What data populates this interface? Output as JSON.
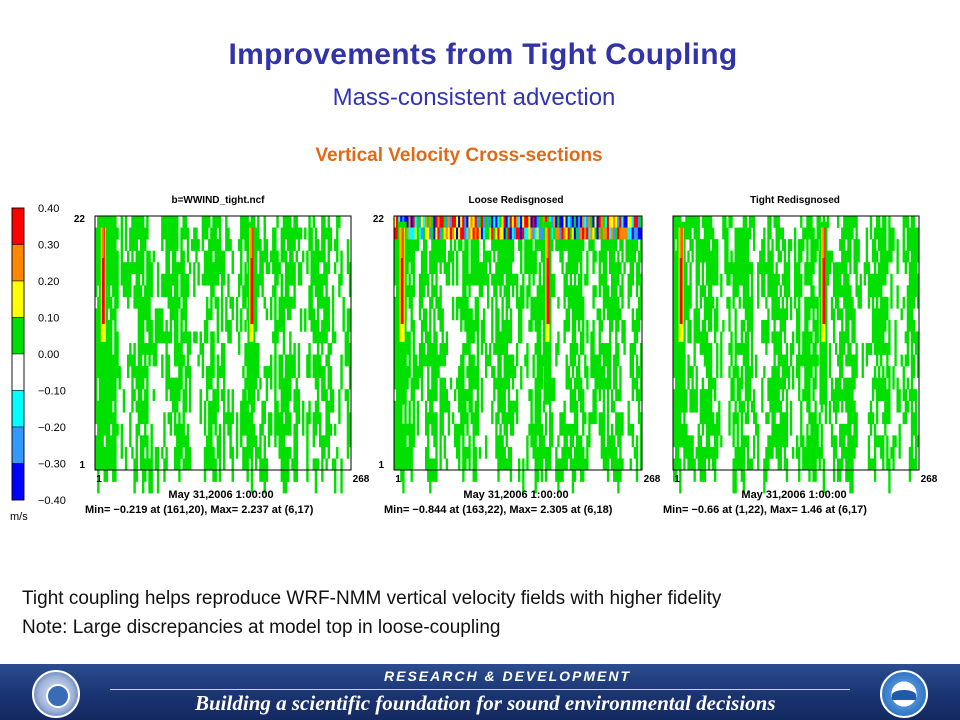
{
  "slide": {
    "title": "Improvements from Tight Coupling",
    "subtitle": "Mass-consistent advection",
    "section_title": "Vertical Velocity Cross-sections",
    "notes": [
      "Tight coupling helps reproduce WRF-NMM vertical velocity fields with higher fidelity",
      "Note: Large discrepancies at model top in loose-coupling"
    ],
    "footer": {
      "top_text": "RESEARCH & DEVELOPMENT",
      "bottom_text": "Building a scientific foundation for sound environmental decisions"
    }
  },
  "chart_data": {
    "type": "heatmap",
    "legend": {
      "unit": "m/s",
      "tick_labels": [
        "0.40",
        "0.30",
        "0.20",
        "0.10",
        "0.00",
        "−0.10",
        "−0.20",
        "−0.30",
        "−0.40"
      ],
      "colors": [
        "#ff0000",
        "#ff8800",
        "#ffff00",
        "#00dd00",
        "#ffffff",
        "#00ffff",
        "#3399ff",
        "#0000ff"
      ]
    },
    "panels": [
      {
        "title": "b=WWIND_tight.ncf",
        "x_range": [
          1,
          268
        ],
        "y_range": [
          1,
          22
        ],
        "x_tick_labels": [
          "1",
          "268"
        ],
        "y_tick_labels": [
          "22",
          "1"
        ],
        "date": "May 31,2006 1:00:00",
        "stats": "Min=  −0.219 at (161,20), Max=   2.237 at (6,17)",
        "max_columns": [
          6,
          161
        ],
        "top_discrepancy": false
      },
      {
        "title": "Loose Redisgnosed",
        "x_range": [
          1,
          268
        ],
        "y_range": [
          1,
          22
        ],
        "x_tick_labels": [
          "1",
          "268"
        ],
        "y_tick_labels": [
          "22",
          "1"
        ],
        "date": "May 31,2006 1:00:00",
        "stats": "Min=  −0.844 at (163,22), Max=   2.305 at (6,18)",
        "max_columns": [
          6,
          163
        ],
        "top_discrepancy": true
      },
      {
        "title": "Tight Redisgnosed",
        "x_range": [
          1,
          268
        ],
        "y_range": [
          1,
          22
        ],
        "x_tick_labels": [
          "1",
          "268"
        ],
        "y_tick_labels": [
          "",
          ""
        ],
        "date": "May 31,2006 1:00:00",
        "stats": "Min=  −0.66 at (1,22), Max=   1.46 at (6,17)",
        "max_columns": [
          6,
          161
        ],
        "top_discrepancy": false
      }
    ]
  }
}
